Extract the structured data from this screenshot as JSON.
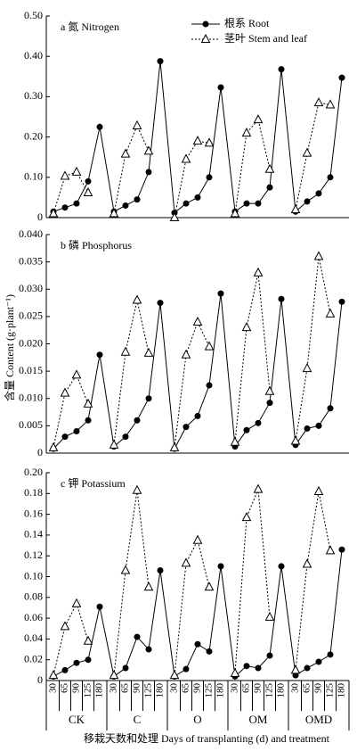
{
  "ylabel": "含量 Content (g·plant⁻¹)",
  "chart_data": [
    {
      "type": "line",
      "title": "a 氮 Nitrogen",
      "ylim": [
        0,
        0.5
      ],
      "yticks": [
        0,
        {
          "value": 0.1,
          "label": "0.10"
        },
        {
          "value": 0.2,
          "label": "0.20"
        },
        {
          "value": 0.3,
          "label": "0.30"
        },
        {
          "value": 0.4,
          "label": "0.40"
        },
        {
          "value": 0.5,
          "label": "0.50"
        }
      ],
      "series": [
        {
          "name": "根系 Root",
          "color": "#000000",
          "values": [
            0.015,
            0.025,
            0.035,
            0.09,
            0.225,
            0.015,
            0.03,
            0.045,
            0.113,
            0.388,
            0.012,
            0.035,
            0.05,
            0.1,
            0.323,
            0.015,
            0.035,
            0.035,
            0.075,
            0.368,
            0.015,
            0.04,
            0.06,
            0.1,
            0.347
          ]
        },
        {
          "name": "茎叶 Stem and leaf",
          "color": "#000000",
          "values": [
            0.01,
            0.103,
            0.113,
            0.062,
            null,
            0.01,
            0.158,
            0.228,
            0.165,
            null,
            0,
            0.145,
            0.19,
            0.185,
            null,
            0.01,
            0.21,
            0.243,
            0.12,
            null,
            0.02,
            0.16,
            0.285,
            0.28,
            null
          ]
        }
      ]
    },
    {
      "type": "line",
      "title": "b 磷 Phosphorus",
      "ylim": [
        0,
        0.04
      ],
      "yticks": [
        0,
        0.005,
        {
          "value": 0.01,
          "label": "0.010"
        },
        0.015,
        {
          "value": 0.02,
          "label": "0.020"
        },
        0.025,
        {
          "value": 0.03,
          "label": "0.030"
        },
        0.035,
        {
          "value": 0.04,
          "label": "0.040"
        }
      ],
      "series": [
        {
          "color": "#000000",
          "values": [
            0.0008,
            0.003,
            0.004,
            0.006,
            0.018,
            0.0012,
            0.003,
            0.006,
            0.01,
            0.0275,
            0.0008,
            0.0048,
            0.0068,
            0.0124,
            0.0292,
            0.0012,
            0.0042,
            0.0055,
            0.0092,
            0.0282,
            0.0015,
            0.0045,
            0.005,
            0.0082,
            0.0277
          ]
        },
        {
          "color": "#000000",
          "values": [
            0.001,
            0.011,
            0.0143,
            0.009,
            null,
            0.0015,
            0.0185,
            0.028,
            0.0183,
            null,
            0.001,
            0.018,
            0.024,
            0.0195,
            null,
            0.002,
            0.023,
            0.033,
            0.0113,
            null,
            0.0022,
            0.0155,
            0.036,
            0.0255,
            null
          ]
        }
      ]
    },
    {
      "type": "line",
      "title": "c 钾  Potassium",
      "ylim": [
        0,
        0.2
      ],
      "yticks": [
        0,
        0.02,
        0.04,
        0.06,
        0.08,
        {
          "value": 0.1,
          "label": "0.10"
        },
        0.12,
        0.14,
        0.16,
        0.18,
        {
          "value": 0.2,
          "label": "0.20"
        }
      ],
      "categories": [
        "30",
        "65",
        "90",
        "125",
        "180",
        "30",
        "65",
        "90",
        "125",
        "180",
        "30",
        "65",
        "90",
        "125",
        "180",
        "30",
        "65",
        "90",
        "125",
        "180",
        "30",
        "65",
        "90",
        "125",
        "180"
      ],
      "groups": [
        "CK",
        "C",
        "O",
        "OM",
        "OMD"
      ],
      "xlabel": "移栽天数和处理 Days of transplanting (d) and treatment",
      "series": [
        {
          "color": "#000000",
          "values": [
            0.004,
            0.01,
            0.017,
            0.02,
            0.071,
            0.004,
            0.012,
            0.042,
            0.03,
            0.106,
            0.004,
            0.011,
            0.035,
            0.028,
            0.11,
            0.004,
            0.014,
            0.012,
            0.024,
            0.11,
            0.005,
            0.012,
            0.018,
            0.025,
            0.126
          ]
        },
        {
          "color": "#000000",
          "values": [
            0.005,
            0.052,
            0.074,
            0.038,
            null,
            0.005,
            0.106,
            0.183,
            0.09,
            null,
            0.005,
            0.113,
            0.135,
            0.09,
            null,
            0.007,
            0.157,
            0.184,
            0.061,
            null,
            0.01,
            0.112,
            0.182,
            0.125,
            null
          ]
        }
      ]
    }
  ]
}
